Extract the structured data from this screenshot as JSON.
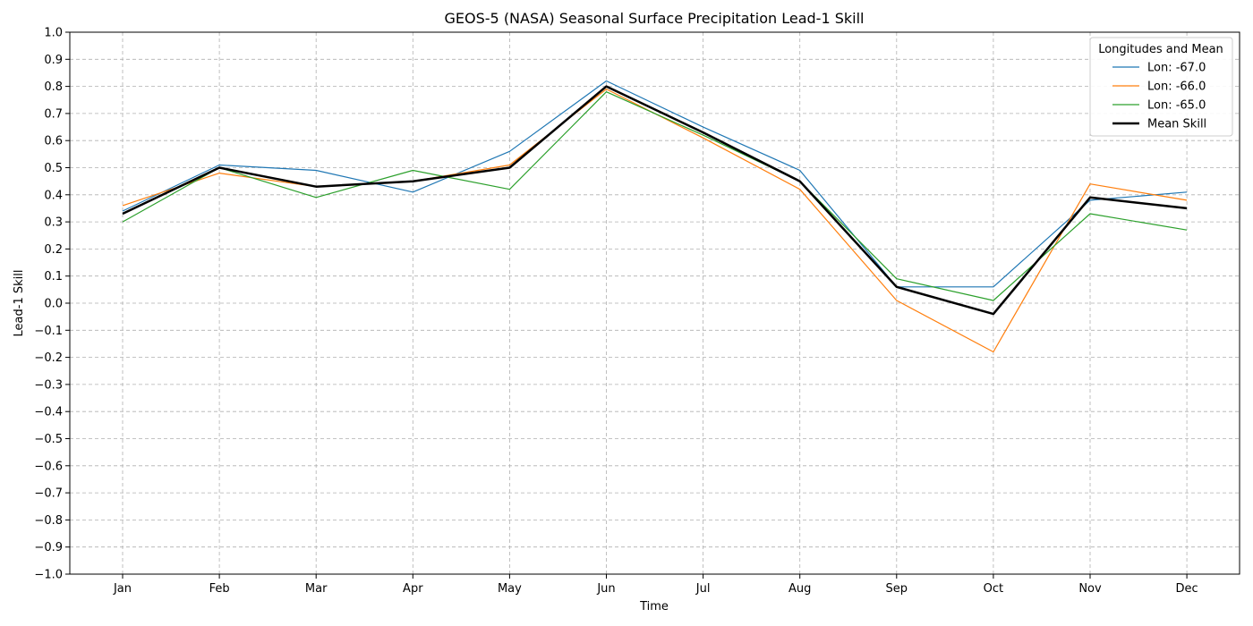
{
  "chart_data": {
    "type": "line",
    "title": "GEOS-5 (NASA) Seasonal Surface Precipitation Lead-1 Skill",
    "xlabel": "Time",
    "ylabel": "Lead-1 Skill",
    "categories": [
      "Jan",
      "Feb",
      "Mar",
      "Apr",
      "May",
      "Jun",
      "Jul",
      "Aug",
      "Sep",
      "Oct",
      "Nov",
      "Dec"
    ],
    "ylim": [
      -1.0,
      1.0
    ],
    "yticks": [
      "-1.0",
      "-0.9",
      "-0.8",
      "-0.7",
      "-0.6",
      "-0.5",
      "-0.4",
      "-0.3",
      "-0.2",
      "-0.1",
      "0.0",
      "0.1",
      "0.2",
      "0.3",
      "0.4",
      "0.5",
      "0.6",
      "0.7",
      "0.8",
      "0.9",
      "1.0"
    ],
    "grid": true,
    "legend": {
      "title": "Longitudes and Mean",
      "placement": "top-right"
    },
    "series": [
      {
        "name": "Lon: -67.0",
        "color": "#1f77b4",
        "style": "thin",
        "values": [
          0.34,
          0.51,
          0.49,
          0.41,
          0.56,
          0.82,
          0.65,
          0.49,
          0.06,
          0.06,
          0.38,
          0.41
        ]
      },
      {
        "name": "Lon: -66.0",
        "color": "#ff7f0e",
        "style": "thin",
        "values": [
          0.36,
          0.48,
          0.43,
          0.45,
          0.51,
          0.79,
          0.61,
          0.42,
          0.01,
          -0.18,
          0.44,
          0.38
        ]
      },
      {
        "name": "Lon: -65.0",
        "color": "#2ca02c",
        "style": "thin",
        "values": [
          0.3,
          0.5,
          0.39,
          0.49,
          0.42,
          0.78,
          0.62,
          0.45,
          0.09,
          0.01,
          0.33,
          0.27
        ]
      },
      {
        "name": "Mean Skill",
        "color": "#000000",
        "style": "thick",
        "values": [
          0.33,
          0.5,
          0.43,
          0.45,
          0.5,
          0.8,
          0.63,
          0.45,
          0.06,
          -0.04,
          0.39,
          0.35
        ]
      }
    ]
  }
}
